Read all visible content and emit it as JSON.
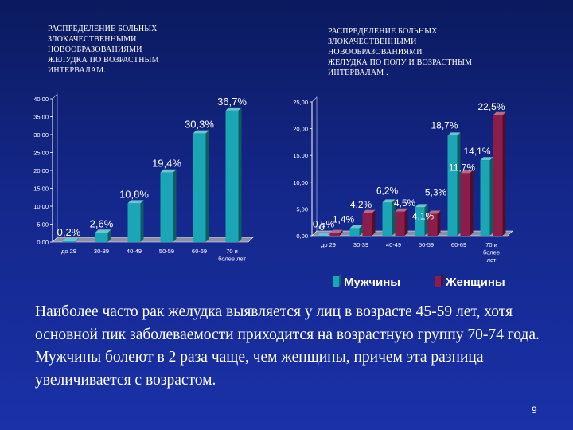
{
  "slide": {
    "summary": "Наиболее часто рак желудка выявляется у лиц в возрасте 45-59 лет, хотя основной пик заболеваемости приходится на возрастную группу 70-74 года. Мужчины болеют в 2 раза чаще, чем женщины, причем эта разница увеличивается с возрастом.",
    "page_number": "9"
  },
  "colors": {
    "men": "#1aa6b4",
    "women": "#8c1c4a",
    "single": "#1aa6b4",
    "text": "#ffffff",
    "label": "#ffffff",
    "background": "#14278a"
  },
  "chart_data": [
    {
      "type": "bar",
      "title": "РАСПРЕДЕЛЕНИЕ БОЛЬНЫХ\nЗЛОКАЧЕСТВЕННЫМИ\nНОВООБРАЗОВАНИЯМИ\nЖЕЛУДКА ПО ВОЗРАСТНЫМ\nИНТЕРВАЛАМ.",
      "categories": [
        "до 29",
        "30-39",
        "40-49",
        "50-59",
        "60-69",
        "70 и\nболее лет"
      ],
      "series": [
        {
          "values": [
            0.2,
            2.6,
            10.8,
            19.4,
            30.3,
            36.7
          ],
          "labels": [
            "0,2%",
            "2,6%",
            "10,8%",
            "19,4%",
            "30,3%",
            "36,7%"
          ]
        }
      ],
      "ylim": [
        0,
        40
      ],
      "yticks": [
        0,
        5,
        10,
        15,
        20,
        25,
        30,
        35,
        40
      ],
      "ytick_labels": [
        "0,00",
        "5,00",
        "10,00",
        "15,00",
        "20,00",
        "25,00",
        "30,00",
        "35,00",
        "40,00"
      ],
      "grid": false,
      "legend": "none"
    },
    {
      "type": "bar",
      "title": "РАСПРЕДЕЛЕНИЕ БОЛЬНЫХ\nЗЛОКАЧЕСТВЕННЫМИ\nНОВООБРАЗОВАНИЯМИ\nЖЕЛУДКА ПО ПОЛУ И ВОЗРАСТНЫМ\nИНТЕРВАЛАМ .",
      "categories": [
        "до 29",
        "30-39",
        "40-49",
        "50-59",
        "60-69",
        "70 и\nболее\nлет"
      ],
      "series": [
        {
          "name": "Мужчины",
          "values": [
            0,
            1.4,
            6.2,
            5.3,
            18.7,
            14.1
          ],
          "labels": [
            "0",
            "1,4%",
            "6,2%",
            "5,3%",
            "18,7%",
            "14,1%"
          ]
        },
        {
          "name": "Женщины",
          "values": [
            0.5,
            4.2,
            4.5,
            4.1,
            11.7,
            22.5
          ],
          "labels": [
            "0,5%",
            "4,2%",
            "4,5%",
            "4,1%",
            "11,7%",
            "22,5%"
          ]
        }
      ],
      "ylim": [
        0,
        25
      ],
      "yticks": [
        0,
        5,
        10,
        15,
        20,
        25
      ],
      "ytick_labels": [
        "0,00",
        "5,00",
        "10,00",
        "15,00",
        "20,00",
        "25,00"
      ],
      "grid": false,
      "legend": "bottom"
    }
  ]
}
